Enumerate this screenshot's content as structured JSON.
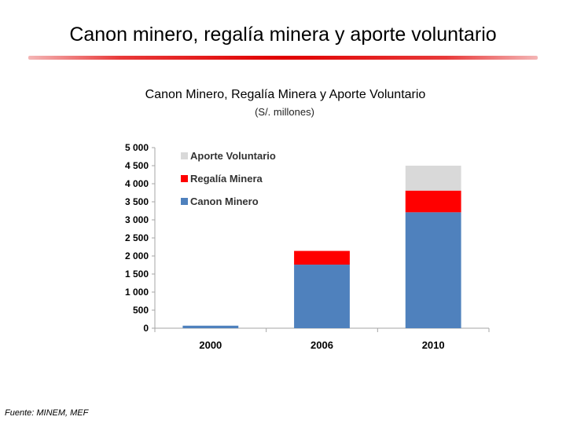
{
  "slide": {
    "title": "Canon minero, regalía minera y aporte voluntario",
    "source": "Fuente: MINEM, MEF"
  },
  "chart_data": {
    "type": "bar",
    "stacked": true,
    "title": "Canon Minero, Regalía Minera y Aporte Voluntario",
    "subtitle": "(S/. millones)",
    "xlabel": "",
    "ylabel": "",
    "categories": [
      "2000",
      "2006",
      "2010"
    ],
    "series": [
      {
        "name": "Canon Minero",
        "color": "#4f81bd",
        "values": [
          70,
          1760,
          3210
        ]
      },
      {
        "name": "Regalía Minera",
        "color": "#ff0000",
        "values": [
          0,
          380,
          600
        ]
      },
      {
        "name": "Aporte Voluntario",
        "color": "#d9d9d9",
        "values": [
          0,
          0,
          690
        ]
      }
    ],
    "ylim": [
      0,
      5000
    ],
    "yticks": [
      0,
      500,
      1000,
      1500,
      2000,
      2500,
      3000,
      3500,
      4000,
      4500,
      5000
    ],
    "ytick_labels": [
      "0",
      "500",
      "1 000",
      "1 500",
      "2 000",
      "2 500",
      "3 000",
      "3 500",
      "4 000",
      "4 500",
      "5 000"
    ],
    "grid": false,
    "legend_position": "top-left, inside plot"
  }
}
